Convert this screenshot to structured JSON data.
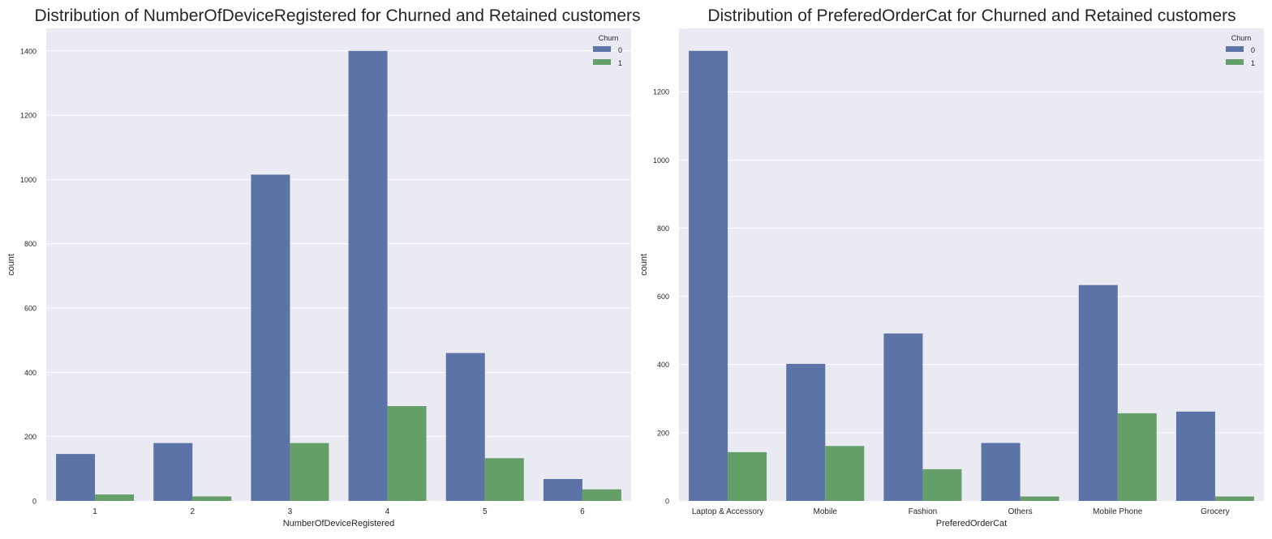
{
  "colors": {
    "churn_0": "#5B73A7",
    "churn_1": "#649E69",
    "plot_bg": "#EAEAF2",
    "grid": "#FFFFFF"
  },
  "chart_data": [
    {
      "type": "bar",
      "title": "Distribution of NumberOfDeviceRegistered for Churned and Retained customers",
      "xlabel": "NumberOfDeviceRegistered",
      "ylabel": "count",
      "categories": [
        "1",
        "2",
        "3",
        "4",
        "5",
        "6"
      ],
      "series": [
        {
          "name": "0",
          "values": [
            146,
            180,
            1015,
            1400,
            460,
            68
          ]
        },
        {
          "name": "1",
          "values": [
            20,
            14,
            180,
            295,
            133,
            36
          ]
        }
      ],
      "ylim": [
        0,
        1470
      ],
      "yticks": [
        0,
        200,
        400,
        600,
        800,
        1000,
        1200,
        1400
      ],
      "grid": true,
      "legend": {
        "title": "Churn",
        "placement": "top-right"
      }
    },
    {
      "type": "bar",
      "title": "Distribution of PreferedOrderCat for Churned and Retained customers",
      "xlabel": "PreferedOrderCat",
      "ylabel": "count",
      "categories": [
        "Laptop & Accessory",
        "Mobile",
        "Fashion",
        "Others",
        "Mobile Phone",
        "Grocery"
      ],
      "series": [
        {
          "name": "0",
          "values": [
            1320,
            402,
            491,
            170,
            633,
            262
          ]
        },
        {
          "name": "1",
          "values": [
            143,
            161,
            93,
            13,
            257,
            13
          ]
        }
      ],
      "ylim": [
        0,
        1386
      ],
      "yticks": [
        0,
        200,
        400,
        600,
        800,
        1000,
        1200
      ],
      "grid": true,
      "legend": {
        "title": "Churn",
        "placement": "top-right"
      }
    }
  ]
}
